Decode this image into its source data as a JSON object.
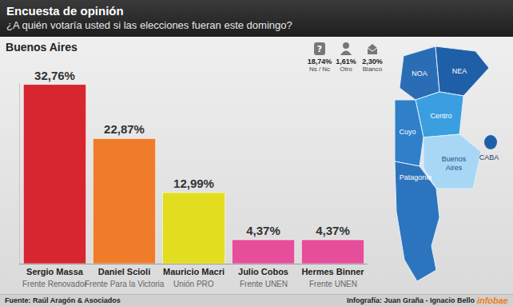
{
  "header": {
    "title": "Encuesta de opinión",
    "subtitle": "¿A quién votaría usted si las elecciones fueran este domingo?"
  },
  "chart_data": {
    "type": "bar",
    "title": "Buenos Aires",
    "categories": [
      "Sergio Massa",
      "Daniel Scioli",
      "Mauricio Macri",
      "Julio Cobos",
      "Hermes Binner"
    ],
    "values": [
      32.76,
      22.87,
      12.99,
      4.37,
      4.37
    ],
    "value_labels": [
      "32,76%",
      "22,87%",
      "12,99%",
      "4,37%",
      "4,37%"
    ],
    "colors": [
      "#d7262f",
      "#f07c2a",
      "#e3dd1f",
      "#e64d9b",
      "#e64d9b"
    ],
    "data_labels": true,
    "tick_labels": "x",
    "grid": false,
    "ylim": [
      0,
      33
    ],
    "annotations": [
      {
        "category": "Sergio Massa",
        "text": "Frente Renovador"
      },
      {
        "category": "Daniel Scioli",
        "text": "Frente Para la Victoria"
      },
      {
        "category": "Mauricio Macri",
        "text": "Unión PRO"
      },
      {
        "category": "Julio Cobos",
        "text": "Frente UNEN"
      },
      {
        "category": "Hermes Binner",
        "text": "Frente UNEN"
      }
    ]
  },
  "other_answers": [
    {
      "label": "Ns / Nc",
      "text": "18,74%"
    },
    {
      "label": "Otro",
      "text": "1,61%"
    },
    {
      "label": "Blanco",
      "text": "2,30%"
    }
  ],
  "map": {
    "regions": [
      "NOA",
      "NEA",
      "Centro",
      "Cuyo",
      "Buenos Aires",
      "Patagonia",
      "CABA"
    ]
  },
  "footer": {
    "source": "Fuente: Raúl Aragón & Asociados",
    "credits": "Infografía: Juan Graña - Ignacio Bello",
    "brand": "infobae"
  }
}
